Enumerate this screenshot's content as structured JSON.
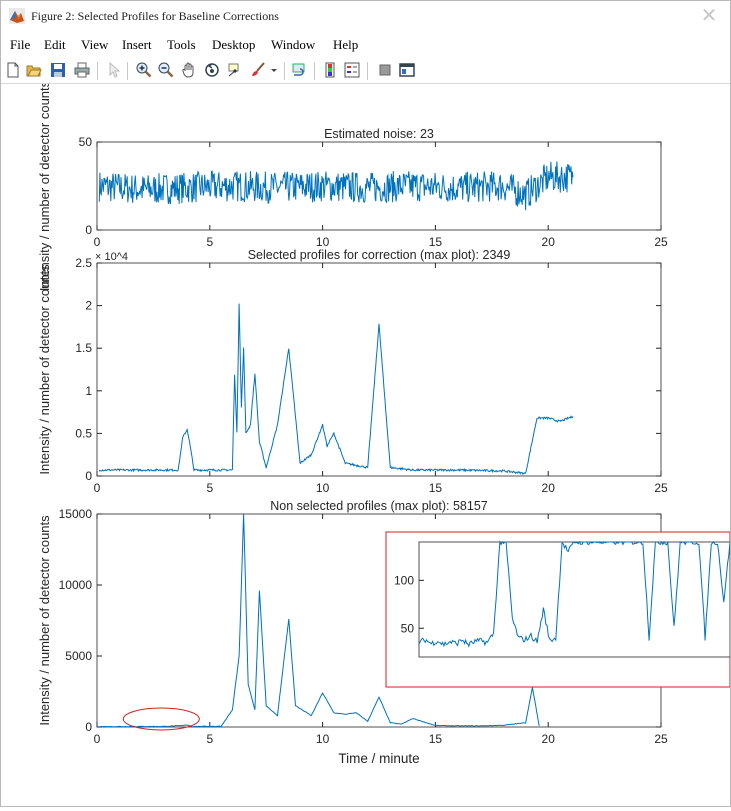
{
  "window": {
    "title": "Figure 2: Selected Profiles for Baseline Corrections",
    "close_glyph": "✕"
  },
  "menu": {
    "items": [
      "File",
      "Edit",
      "View",
      "Insert",
      "Tools",
      "Desktop",
      "Window",
      "Help"
    ]
  },
  "toolbar": {
    "icons": [
      "new-figure-icon",
      "open-file-icon",
      "save-icon",
      "print-icon",
      "edit-plot-arrow-icon",
      "zoom-in-icon",
      "zoom-out-icon",
      "pan-hand-icon",
      "rotate-3d-icon",
      "data-cursor-icon",
      "brush-icon",
      "brush-dropdown-icon",
      "link-plot-icon",
      "colorbar-icon",
      "legend-icon",
      "hide-plot-tools-icon",
      "show-plot-tools-icon"
    ]
  },
  "colors": {
    "line": "#0072BD",
    "inset_border": "#CC2222",
    "highlight_ellipse": "#CC2222",
    "axes": "#262626"
  },
  "chart_data": [
    {
      "type": "line",
      "title": "Estimated noise: 23",
      "xlabel": "",
      "ylabel": "Intensity / number of detector counts",
      "xlim": [
        0,
        25
      ],
      "ylim": [
        0,
        50
      ],
      "xticks": [
        "0",
        "5",
        "10",
        "15",
        "20",
        "25"
      ],
      "yticks": [
        "0",
        "50"
      ],
      "series": [
        {
          "x": [
            0.1,
            2,
            4,
            6,
            8,
            10,
            12,
            14,
            16,
            18,
            19,
            19.4,
            20,
            21.1
          ],
          "y": [
            25,
            23,
            24,
            25,
            24,
            25,
            24,
            25,
            24,
            25,
            20,
            24,
            30,
            30
          ]
        }
      ]
    },
    {
      "type": "line",
      "title": "Selected profiles for correction (max plot): 2349",
      "xlabel": "",
      "ylabel": "Intensity / number of detector counts",
      "xlim": [
        0,
        25
      ],
      "ylim": [
        0,
        25000
      ],
      "y_exponent": "× 10^4",
      "xticks": [
        "0",
        "5",
        "10",
        "15",
        "20",
        "25"
      ],
      "yticks": [
        "0",
        "0.5",
        "1",
        "1.5",
        "2",
        "2.5"
      ],
      "series": [
        {
          "x": [
            0.1,
            3.6,
            3.8,
            4.0,
            4.1,
            4.3,
            6.0,
            6.1,
            6.2,
            6.3,
            6.4,
            6.5,
            6.6,
            6.8,
            7.0,
            7.2,
            7.5,
            8.0,
            8.5,
            9.0,
            9.5,
            10.0,
            10.2,
            10.5,
            11.0,
            12.0,
            12.5,
            13.0,
            14.0,
            16.0,
            18.0,
            19.0,
            19.5,
            20.0,
            20.5,
            21.1
          ],
          "y": [
            700,
            700,
            4500,
            5500,
            4000,
            700,
            700,
            12000,
            5000,
            20300,
            8000,
            15000,
            5000,
            6000,
            12000,
            4000,
            1000,
            6000,
            15000,
            1500,
            2500,
            6000,
            3500,
            5000,
            1500,
            1000,
            17800,
            1000,
            700,
            700,
            600,
            300,
            6800,
            6800,
            6400,
            7000
          ]
        }
      ]
    },
    {
      "type": "line",
      "title": "Non selected profiles (max plot): 58157",
      "xlabel": "Time / minute",
      "ylabel": "Intensity / number of detector counts",
      "xlim": [
        0,
        25
      ],
      "ylim": [
        0,
        15000
      ],
      "xticks": [
        "0",
        "5",
        "10",
        "15",
        "20",
        "25"
      ],
      "yticks": [
        "0",
        "5000",
        "10000",
        "15000"
      ],
      "series": [
        {
          "x": [
            0.1,
            3.0,
            3.8,
            4.0,
            4.2,
            5.5,
            6.0,
            6.3,
            6.5,
            6.7,
            7.0,
            7.2,
            7.5,
            8.0,
            8.5,
            8.8,
            9.5,
            10.0,
            10.5,
            11.0,
            11.5,
            12.0,
            12.5,
            13.0,
            13.5,
            14.0,
            15.0,
            16.0,
            17.0,
            18.0,
            19.0,
            19.3,
            19.6
          ],
          "y": [
            30,
            40,
            100,
            150,
            40,
            50,
            1200,
            5000,
            15000,
            3000,
            1200,
            9600,
            1500,
            800,
            7600,
            1500,
            800,
            2400,
            1000,
            900,
            1000,
            400,
            2100,
            300,
            200,
            600,
            100,
            80,
            80,
            120,
            300,
            2800,
            80
          ]
        }
      ],
      "inset": {
        "ylim": [
          20,
          140
        ],
        "yticks": [
          "50",
          "100"
        ],
        "series": [
          {
            "x": [
              0,
              2,
              4,
              6,
              8,
              10,
              12,
              14,
              15,
              16,
              18,
              20,
              22,
              24,
              26,
              28,
              30,
              32,
              34,
              36,
              38,
              40,
              42,
              44,
              46,
              48,
              50,
              52,
              54,
              56,
              58,
              60,
              62,
              64,
              66,
              68,
              70,
              72,
              74,
              76,
              78,
              80,
              82,
              84,
              86,
              88,
              90,
              92,
              94,
              96,
              98,
              100
            ],
            "y": [
              35,
              38,
              34,
              37,
              33,
              36,
              34,
              38,
              35,
              33,
              36,
              37,
              35,
              45,
              140,
              140,
              60,
              40,
              38,
              42,
              36,
              70,
              37,
              40,
              140,
              130,
              140,
              140,
              140,
              140,
              140,
              140,
              140,
              140,
              140,
              140,
              140,
              140,
              40,
              140,
              140,
              140,
              50,
              140,
              140,
              140,
              140,
              40,
              140,
              140,
              78,
              140
            ]
          }
        ]
      }
    }
  ]
}
